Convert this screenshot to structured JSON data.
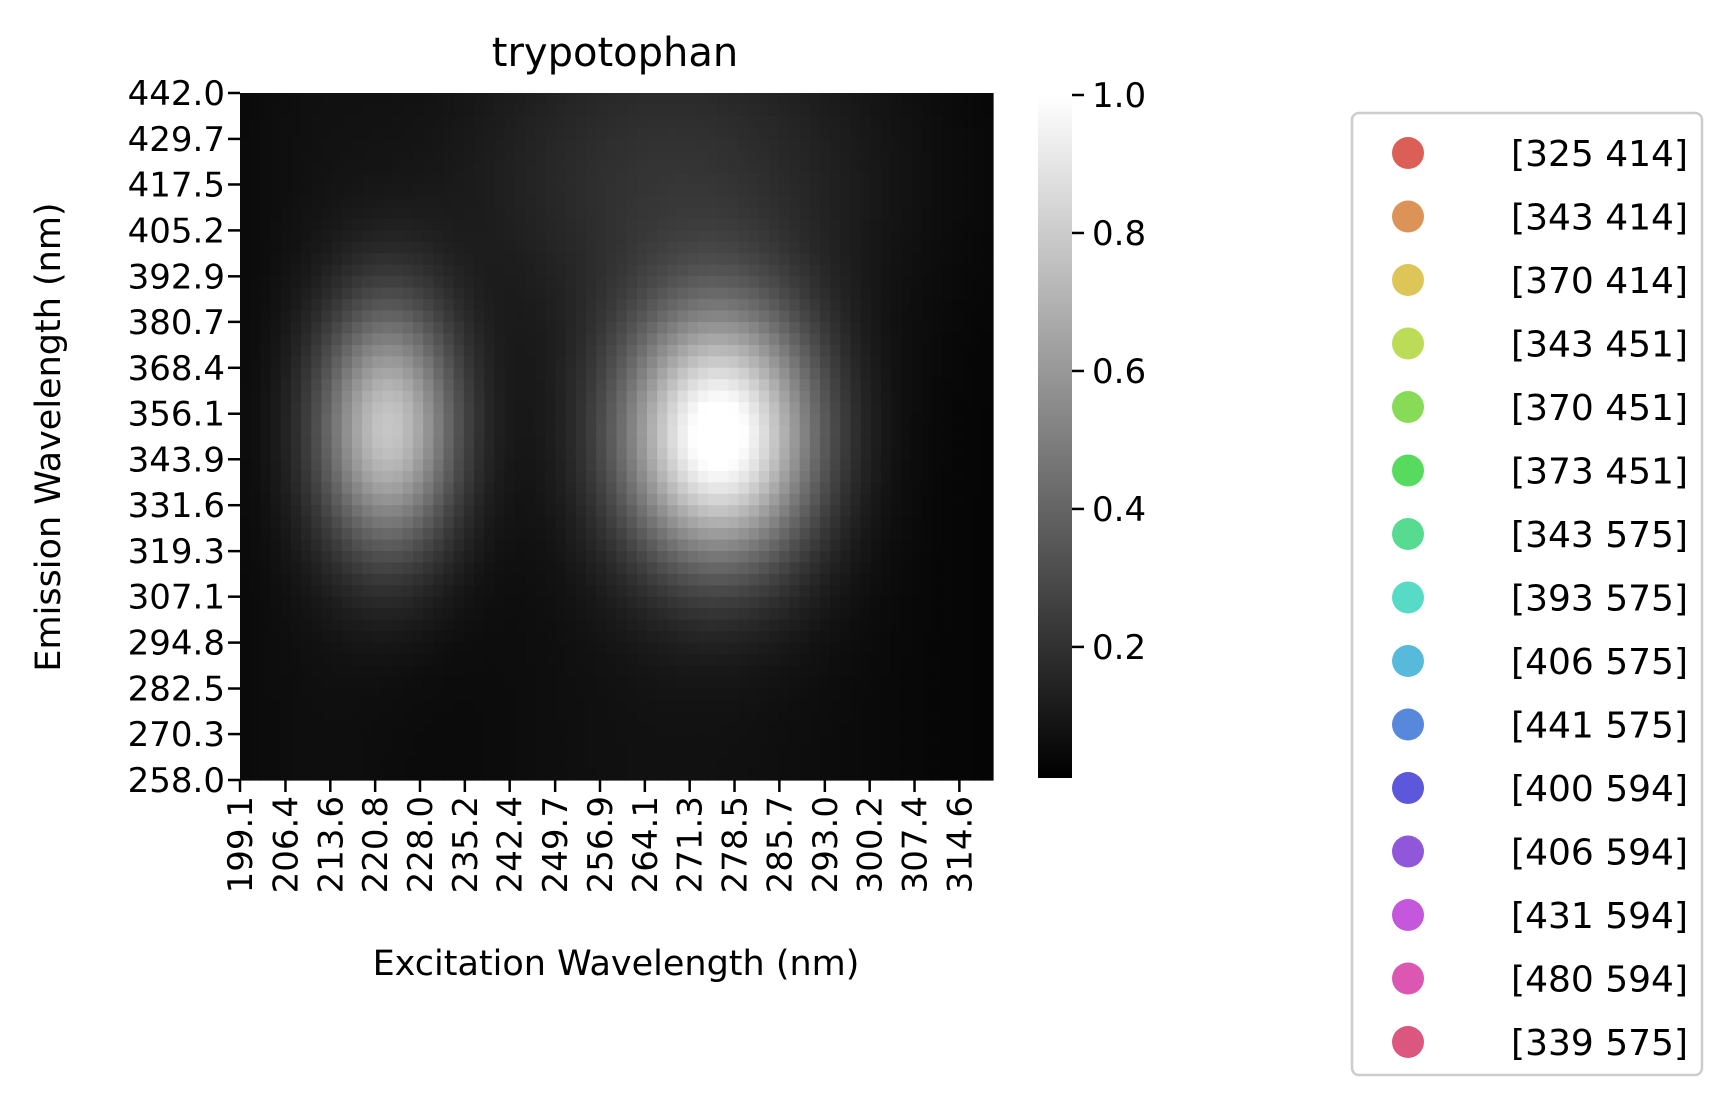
{
  "chart_data": {
    "type": "heatmap",
    "title": "trypotophan",
    "xlabel": "Excitation Wavelength (nm)",
    "ylabel": "Emission Wavelength (nm)",
    "x_ticks": [
      "199.1",
      "206.4",
      "213.6",
      "220.8",
      "228.0",
      "235.2",
      "242.4",
      "249.7",
      "256.9",
      "264.1",
      "271.3",
      "278.5",
      "285.7",
      "293.0",
      "300.2",
      "307.4",
      "314.6"
    ],
    "y_ticks": [
      "442.0",
      "429.7",
      "417.5",
      "405.2",
      "392.9",
      "380.7",
      "368.4",
      "356.1",
      "343.9",
      "331.6",
      "319.3",
      "307.1",
      "294.8",
      "282.5",
      "270.3",
      "258.0"
    ],
    "x_range": [
      199.1,
      320.0
    ],
    "y_range": [
      258.0,
      442.0
    ],
    "colormap": "grayscale (black = low, white = high)",
    "colorbar": {
      "ticks": [
        "1.0",
        "0.8",
        "0.6",
        "0.4",
        "0.2"
      ],
      "range": [
        0.01,
        1.0
      ]
    },
    "peaks": [
      {
        "excitation": 276.0,
        "emission": 350.0,
        "intensity": 0.98
      },
      {
        "excitation": 223.0,
        "emission": 352.0,
        "intensity": 0.72
      }
    ],
    "grid": false,
    "legend_position": "right, outside plot",
    "legend": [
      {
        "label": "[325 414]",
        "color": "#db5f57"
      },
      {
        "label": "[343 414]",
        "color": "#db9357"
      },
      {
        "label": "[370 414]",
        "color": "#dbc657"
      },
      {
        "label": "[343 451]",
        "color": "#bcdb57"
      },
      {
        "label": "[370 451]",
        "color": "#87db57"
      },
      {
        "label": "[373 451]",
        "color": "#57db5e"
      },
      {
        "label": "[343 575]",
        "color": "#57db91"
      },
      {
        "label": "[393 575]",
        "color": "#57dbc6"
      },
      {
        "label": "[406 575]",
        "color": "#57badb"
      },
      {
        "label": "[441 575]",
        "color": "#5788db"
      },
      {
        "label": "[400 594]",
        "color": "#5c57db"
      },
      {
        "label": "[406 594]",
        "color": "#9057db"
      },
      {
        "label": "[431 594]",
        "color": "#c457db"
      },
      {
        "label": "[480 594]",
        "color": "#db57b2"
      },
      {
        "label": "[339 575]",
        "color": "#db577f"
      }
    ]
  }
}
